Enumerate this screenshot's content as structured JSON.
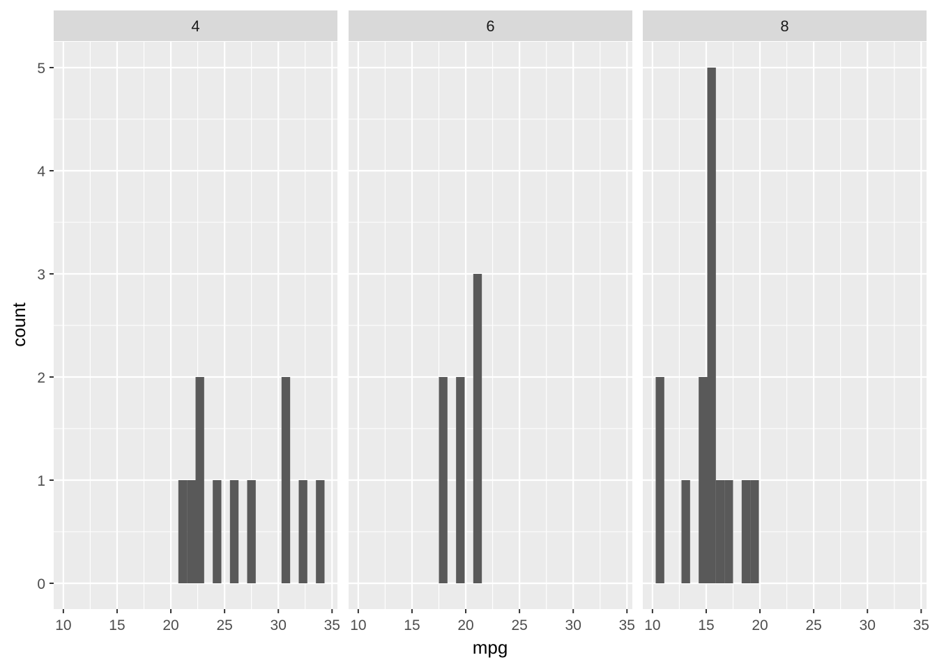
{
  "chart_data": {
    "type": "bar",
    "title": "",
    "xlabel": "mpg",
    "ylabel": "count",
    "xlim": [
      9.1,
      35.5
    ],
    "ylim": [
      -0.25,
      5.25
    ],
    "x_ticks": [
      10,
      15,
      20,
      25,
      30,
      35
    ],
    "y_ticks": [
      0,
      1,
      2,
      3,
      4,
      5
    ],
    "grid": true,
    "bar_color": "#595959",
    "panel_background": "#EBEBEB",
    "strip_background": "#D9D9D9",
    "grid_color": "#FFFFFF",
    "bin_width": 0.8,
    "facets": [
      {
        "label": "4",
        "bins": [
          {
            "x": 21.1,
            "count": 1
          },
          {
            "x": 21.9,
            "count": 1
          },
          {
            "x": 22.7,
            "count": 2
          },
          {
            "x": 24.3,
            "count": 1
          },
          {
            "x": 25.9,
            "count": 1
          },
          {
            "x": 27.5,
            "count": 1
          },
          {
            "x": 30.7,
            "count": 2
          },
          {
            "x": 32.3,
            "count": 1
          },
          {
            "x": 33.9,
            "count": 1
          }
        ]
      },
      {
        "label": "6",
        "bins": [
          {
            "x": 17.9,
            "count": 2
          },
          {
            "x": 19.5,
            "count": 2
          },
          {
            "x": 21.1,
            "count": 3
          }
        ]
      },
      {
        "label": "8",
        "bins": [
          {
            "x": 10.7,
            "count": 2
          },
          {
            "x": 13.1,
            "count": 1
          },
          {
            "x": 14.7,
            "count": 2
          },
          {
            "x": 15.5,
            "count": 5
          },
          {
            "x": 16.3,
            "count": 1
          },
          {
            "x": 17.1,
            "count": 1
          },
          {
            "x": 18.7,
            "count": 1
          },
          {
            "x": 19.5,
            "count": 1
          }
        ]
      }
    ]
  }
}
